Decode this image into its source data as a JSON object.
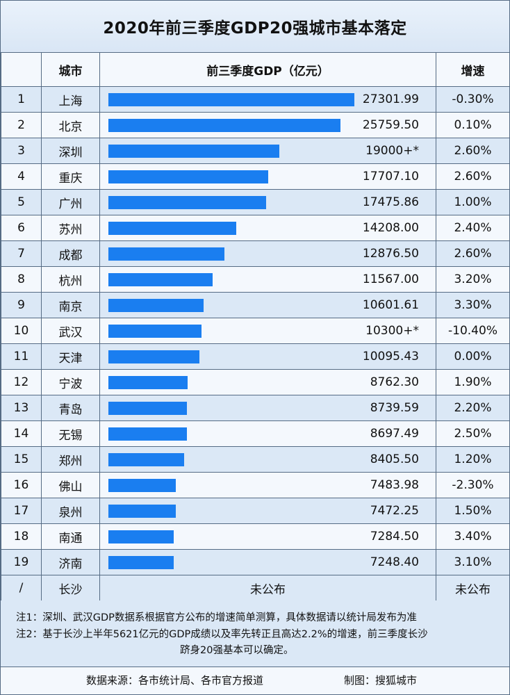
{
  "title": "2020年前三季度GDP20强城市基本落定",
  "headers": {
    "rank": "",
    "city": "城市",
    "gdp": "前三季度GDP（亿元）",
    "growth": "增速"
  },
  "chart_data": {
    "type": "bar",
    "title": "2020年前三季度GDP20强城市基本落定",
    "xlabel": "城市",
    "ylabel": "前三季度GDP（亿元）",
    "categories": [
      "上海",
      "北京",
      "深圳",
      "重庆",
      "广州",
      "苏州",
      "成都",
      "杭州",
      "南京",
      "武汉",
      "天津",
      "宁波",
      "青岛",
      "无锡",
      "郑州",
      "佛山",
      "泉州",
      "南通",
      "济南"
    ],
    "rows": [
      {
        "rank": "1",
        "city": "上海",
        "gdp": 27301.99,
        "gdp_label": "27301.99",
        "growth": "-0.30%"
      },
      {
        "rank": "2",
        "city": "北京",
        "gdp": 25759.5,
        "gdp_label": "25759.50",
        "growth": "0.10%"
      },
      {
        "rank": "3",
        "city": "深圳",
        "gdp": 19000,
        "gdp_label": "19000+*",
        "growth": "2.60%"
      },
      {
        "rank": "4",
        "city": "重庆",
        "gdp": 17707.1,
        "gdp_label": "17707.10",
        "growth": "2.60%"
      },
      {
        "rank": "5",
        "city": "广州",
        "gdp": 17475.86,
        "gdp_label": "17475.86",
        "growth": "1.00%"
      },
      {
        "rank": "6",
        "city": "苏州",
        "gdp": 14208.0,
        "gdp_label": "14208.00",
        "growth": "2.40%"
      },
      {
        "rank": "7",
        "city": "成都",
        "gdp": 12876.5,
        "gdp_label": "12876.50",
        "growth": "2.60%"
      },
      {
        "rank": "8",
        "city": "杭州",
        "gdp": 11567.0,
        "gdp_label": "11567.00",
        "growth": "3.20%"
      },
      {
        "rank": "9",
        "city": "南京",
        "gdp": 10601.61,
        "gdp_label": "10601.61",
        "growth": "3.30%"
      },
      {
        "rank": "10",
        "city": "武汉",
        "gdp": 10300,
        "gdp_label": "10300+*",
        "growth": "-10.40%"
      },
      {
        "rank": "11",
        "city": "天津",
        "gdp": 10095.43,
        "gdp_label": "10095.43",
        "growth": "0.00%"
      },
      {
        "rank": "12",
        "city": "宁波",
        "gdp": 8762.3,
        "gdp_label": "8762.30",
        "growth": "1.90%"
      },
      {
        "rank": "13",
        "city": "青岛",
        "gdp": 8739.59,
        "gdp_label": "8739.59",
        "growth": "2.20%"
      },
      {
        "rank": "14",
        "city": "无锡",
        "gdp": 8697.49,
        "gdp_label": "8697.49",
        "growth": "2.50%"
      },
      {
        "rank": "15",
        "city": "郑州",
        "gdp": 8405.5,
        "gdp_label": "8405.50",
        "growth": "1.20%"
      },
      {
        "rank": "16",
        "city": "佛山",
        "gdp": 7483.98,
        "gdp_label": "7483.98",
        "growth": "-2.30%"
      },
      {
        "rank": "17",
        "city": "泉州",
        "gdp": 7472.25,
        "gdp_label": "7472.25",
        "growth": "1.50%"
      },
      {
        "rank": "18",
        "city": "南通",
        "gdp": 7284.5,
        "gdp_label": "7284.50",
        "growth": "3.40%"
      },
      {
        "rank": "19",
        "city": "济南",
        "gdp": 7248.4,
        "gdp_label": "7248.40",
        "growth": "3.10%"
      }
    ],
    "xlim": [
      0,
      27301.99
    ],
    "bar_color": "#1a7ef0"
  },
  "extra_row": {
    "rank": "/",
    "city": "长沙",
    "gdp": "未公布",
    "growth": "未公布"
  },
  "notes": {
    "line1": "注1：深圳、武汉GDP数据系根据官方公布的增速简单测算，具体数据请以统计局发布为准",
    "line2": "注2：基于长沙上半年5621亿元的GDP成绩以及率先转正且高达2.2%的增速，前三季度长沙",
    "line3": "跻身20强基本可以确定。"
  },
  "footer": {
    "source": "数据来源：各市统计局、各市官方报道",
    "credit": "制图：搜狐城市"
  }
}
